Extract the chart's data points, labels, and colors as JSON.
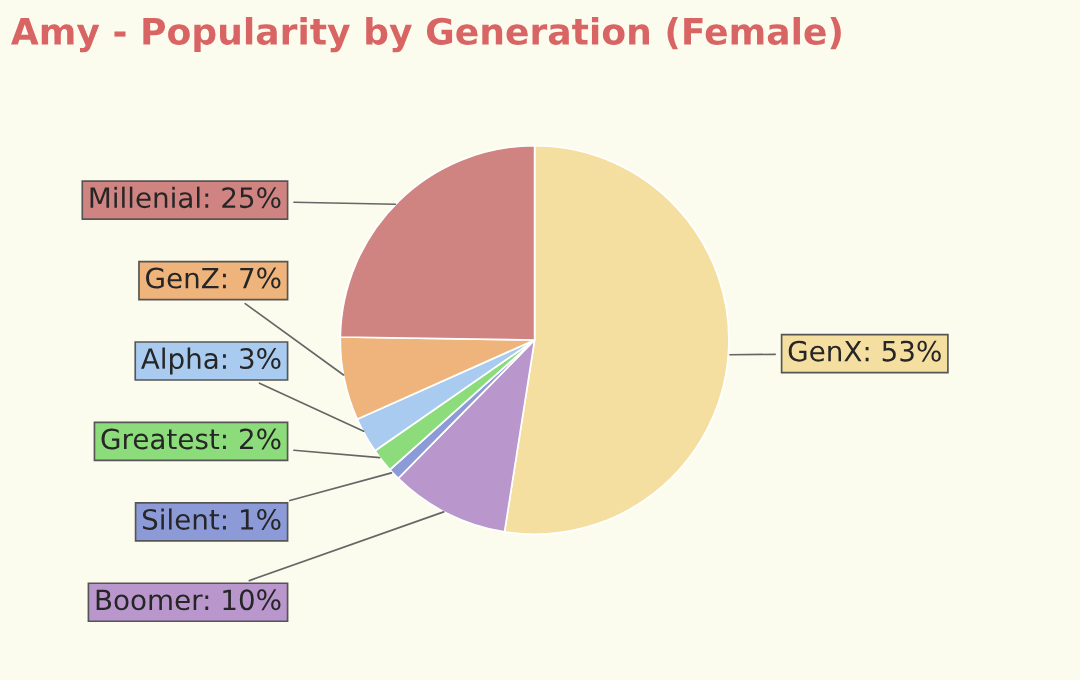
{
  "chart_data": {
    "type": "pie",
    "title": "Amy - Popularity by Generation (Female)",
    "categories": [
      "GenX",
      "Boomer",
      "Silent",
      "Greatest",
      "Alpha",
      "GenZ",
      "Millenial"
    ],
    "values": [
      53,
      10,
      1,
      2,
      3,
      7,
      25
    ],
    "value_labels": [
      "53%",
      "10%",
      "1%",
      "2%",
      "3%",
      "7%",
      "25%"
    ],
    "colors": [
      "#f5dfa0",
      "#b996cc",
      "#8c9bd8",
      "#8ddc7c",
      "#a9cbef",
      "#efb47c",
      "#d08482"
    ]
  }
}
